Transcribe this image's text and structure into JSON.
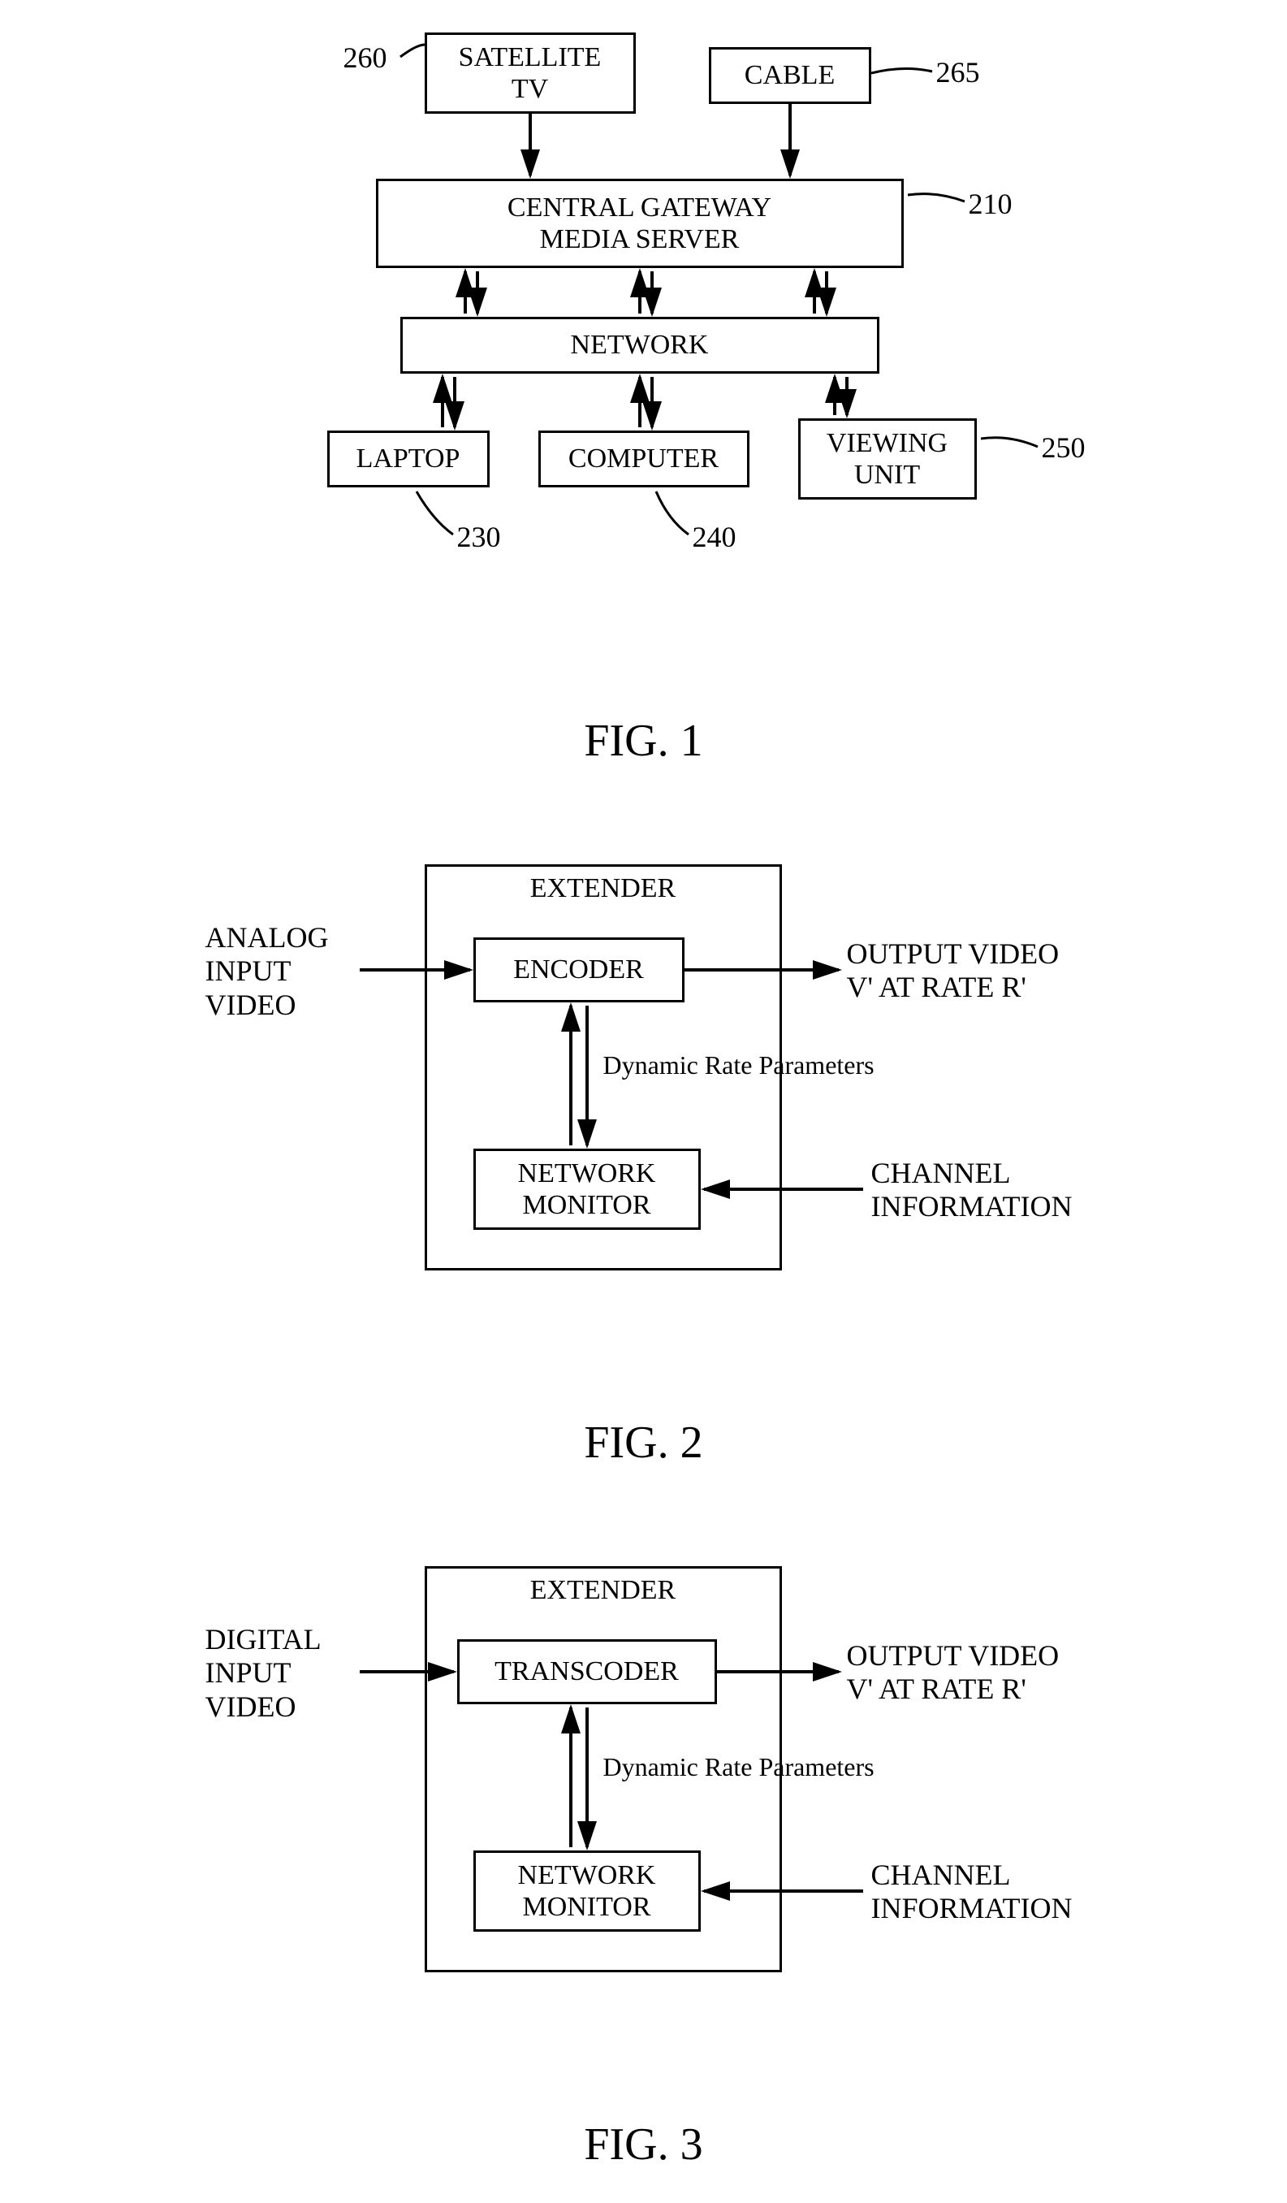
{
  "fig1": {
    "caption": "FIG. 1",
    "boxes": {
      "sat": {
        "label": "SATELLITE\nTV",
        "ref": "260"
      },
      "cable": {
        "label": "CABLE",
        "ref": "265"
      },
      "server": {
        "label": "CENTRAL GATEWAY\nMEDIA SERVER",
        "ref": "210"
      },
      "network": {
        "label": "NETWORK"
      },
      "laptop": {
        "label": "LAPTOP",
        "ref": "230"
      },
      "computer": {
        "label": "COMPUTER",
        "ref": "240"
      },
      "viewing": {
        "label": "VIEWING\nUNIT",
        "ref": "250"
      }
    },
    "style": {
      "box_border": "#000000",
      "box_border_width": 3,
      "font_size_box": 34,
      "font_size_ref": 36,
      "caption_font_size": 56,
      "arrow_stroke": "#000000",
      "arrow_stroke_width": 4,
      "arrowhead_size": 14
    }
  },
  "fig2": {
    "caption": "FIG. 2",
    "outer_title": "EXTENDER",
    "boxes": {
      "encoder": {
        "label": "ENCODER"
      },
      "monitor": {
        "label": "NETWORK\nMONITOR"
      }
    },
    "labels": {
      "input": "ANALOG\nINPUT\nVIDEO",
      "output": "OUTPUT VIDEO\nV' AT RATE R'",
      "channel": "CHANNEL\nINFORMATION",
      "drp": "Dynamic Rate Parameters"
    },
    "style": {
      "box_border": "#000000",
      "box_border_width": 3,
      "font_size_box": 34,
      "font_size_label": 36,
      "font_size_drp": 32,
      "caption_font_size": 56,
      "arrow_stroke": "#000000",
      "arrow_stroke_width": 4,
      "arrowhead_size": 14
    }
  },
  "fig3": {
    "caption": "FIG. 3",
    "outer_title": "EXTENDER",
    "boxes": {
      "transcoder": {
        "label": "TRANSCODER"
      },
      "monitor": {
        "label": "NETWORK\nMONITOR"
      }
    },
    "labels": {
      "input": "DIGITAL\nINPUT\nVIDEO",
      "output": "OUTPUT VIDEO\nV' AT RATE R'",
      "channel": "CHANNEL\nINFORMATION",
      "drp": "Dynamic Rate Parameters"
    },
    "style": {
      "box_border": "#000000",
      "box_border_width": 3,
      "font_size_box": 34,
      "font_size_label": 36,
      "font_size_drp": 32,
      "caption_font_size": 56,
      "arrow_stroke": "#000000",
      "arrow_stroke_width": 4,
      "arrowhead_size": 14
    }
  }
}
